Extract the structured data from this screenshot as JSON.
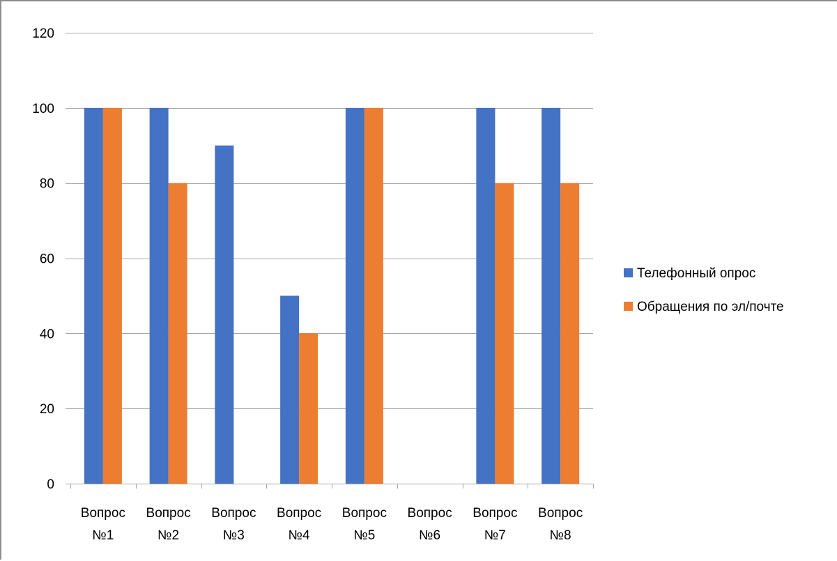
{
  "chart_data": {
    "type": "bar",
    "categories": [
      [
        "Вопрос",
        "№1"
      ],
      [
        "Вопрос",
        "№2"
      ],
      [
        "Вопрос",
        "№3"
      ],
      [
        "Вопрос",
        "№4"
      ],
      [
        "Вопрос",
        "№5"
      ],
      [
        "Вопрос",
        "№6"
      ],
      [
        "Вопрос",
        "№7"
      ],
      [
        "Вопрос",
        "№8"
      ]
    ],
    "series": [
      {
        "name": "Телефонный опрос",
        "color": "#4472c4",
        "values": [
          100,
          100,
          90,
          50,
          100,
          0,
          100,
          100
        ]
      },
      {
        "name": "Обращения по эл/почте",
        "color": "#ed7d31",
        "values": [
          100,
          80,
          0,
          40,
          100,
          0,
          80,
          80
        ]
      }
    ],
    "ylim": [
      0,
      120
    ],
    "yticks": [
      0,
      20,
      40,
      60,
      80,
      100,
      120
    ],
    "grid": true,
    "legend": "right",
    "title": "",
    "xlabel": "",
    "ylabel": ""
  }
}
